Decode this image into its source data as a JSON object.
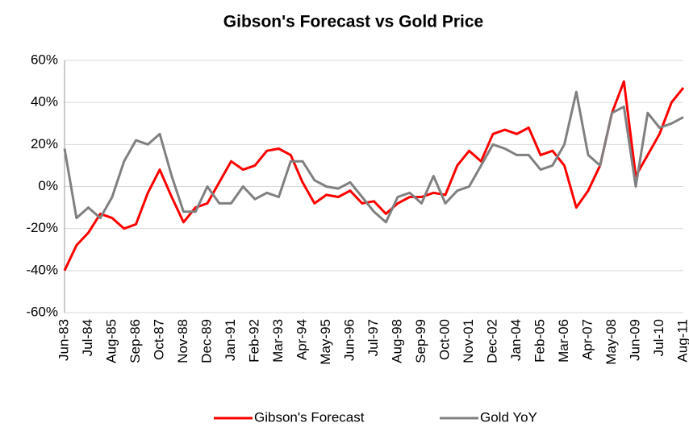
{
  "chart_data": {
    "type": "line",
    "title": "Gibson's Forecast vs Gold Price",
    "categories": [
      "Jun-83",
      null,
      "Jul-84",
      null,
      "Aug-85",
      null,
      "Sep-86",
      null,
      "Oct-87",
      null,
      "Nov-88",
      null,
      "Dec-89",
      null,
      "Jan-91",
      null,
      "Feb-92",
      null,
      "Mar-93",
      null,
      "Apr-94",
      null,
      "May-95",
      null,
      "Jun-96",
      null,
      "Jul-97",
      null,
      "Aug-98",
      null,
      "Sep-99",
      null,
      "Oct-00",
      null,
      "Nov-01",
      null,
      "Dec-02",
      null,
      "Jan-04",
      null,
      "Feb-05",
      null,
      "Mar-06",
      null,
      "Apr-07",
      null,
      "May-08",
      null,
      "Jun-09",
      null,
      "Jul-10",
      null,
      "Aug-11"
    ],
    "series": [
      {
        "name": "Gibson's Forecast",
        "color": "#ff0000",
        "values": [
          -40,
          -28,
          -22,
          -13,
          -15,
          -20,
          -18,
          -3,
          8,
          -5,
          -17,
          -10,
          -8,
          2,
          12,
          8,
          10,
          17,
          18,
          15,
          2,
          -8,
          -4,
          -5,
          -2,
          -8,
          -7,
          -13,
          -8,
          -5,
          -5,
          -3,
          -4,
          10,
          17,
          12,
          25,
          27,
          25,
          28,
          15,
          17,
          10,
          -10,
          -2,
          10,
          35,
          50,
          5,
          15,
          25,
          40,
          47
        ]
      },
      {
        "name": "Gold YoY",
        "color": "#808080",
        "values": [
          18,
          -15,
          -10,
          -15,
          -5,
          12,
          22,
          20,
          25,
          5,
          -12,
          -12,
          0,
          -8,
          -8,
          0,
          -6,
          -3,
          -5,
          12,
          12,
          3,
          0,
          -1,
          2,
          -5,
          -12,
          -17,
          -5,
          -3,
          -8,
          5,
          -8,
          -2,
          0,
          10,
          20,
          18,
          15,
          15,
          8,
          10,
          20,
          45,
          15,
          10,
          35,
          38,
          0,
          35,
          28,
          30,
          33
        ]
      }
    ],
    "ylim": [
      -60,
      60
    ],
    "yticks": [
      {
        "value": -60,
        "label": "-60%"
      },
      {
        "value": -40,
        "label": "-40%"
      },
      {
        "value": -20,
        "label": "-20%"
      },
      {
        "value": 0,
        "label": "0%"
      },
      {
        "value": 20,
        "label": "20%"
      },
      {
        "value": 40,
        "label": "40%"
      },
      {
        "value": 60,
        "label": "60%"
      }
    ],
    "grid": true,
    "legend": "bottom"
  }
}
